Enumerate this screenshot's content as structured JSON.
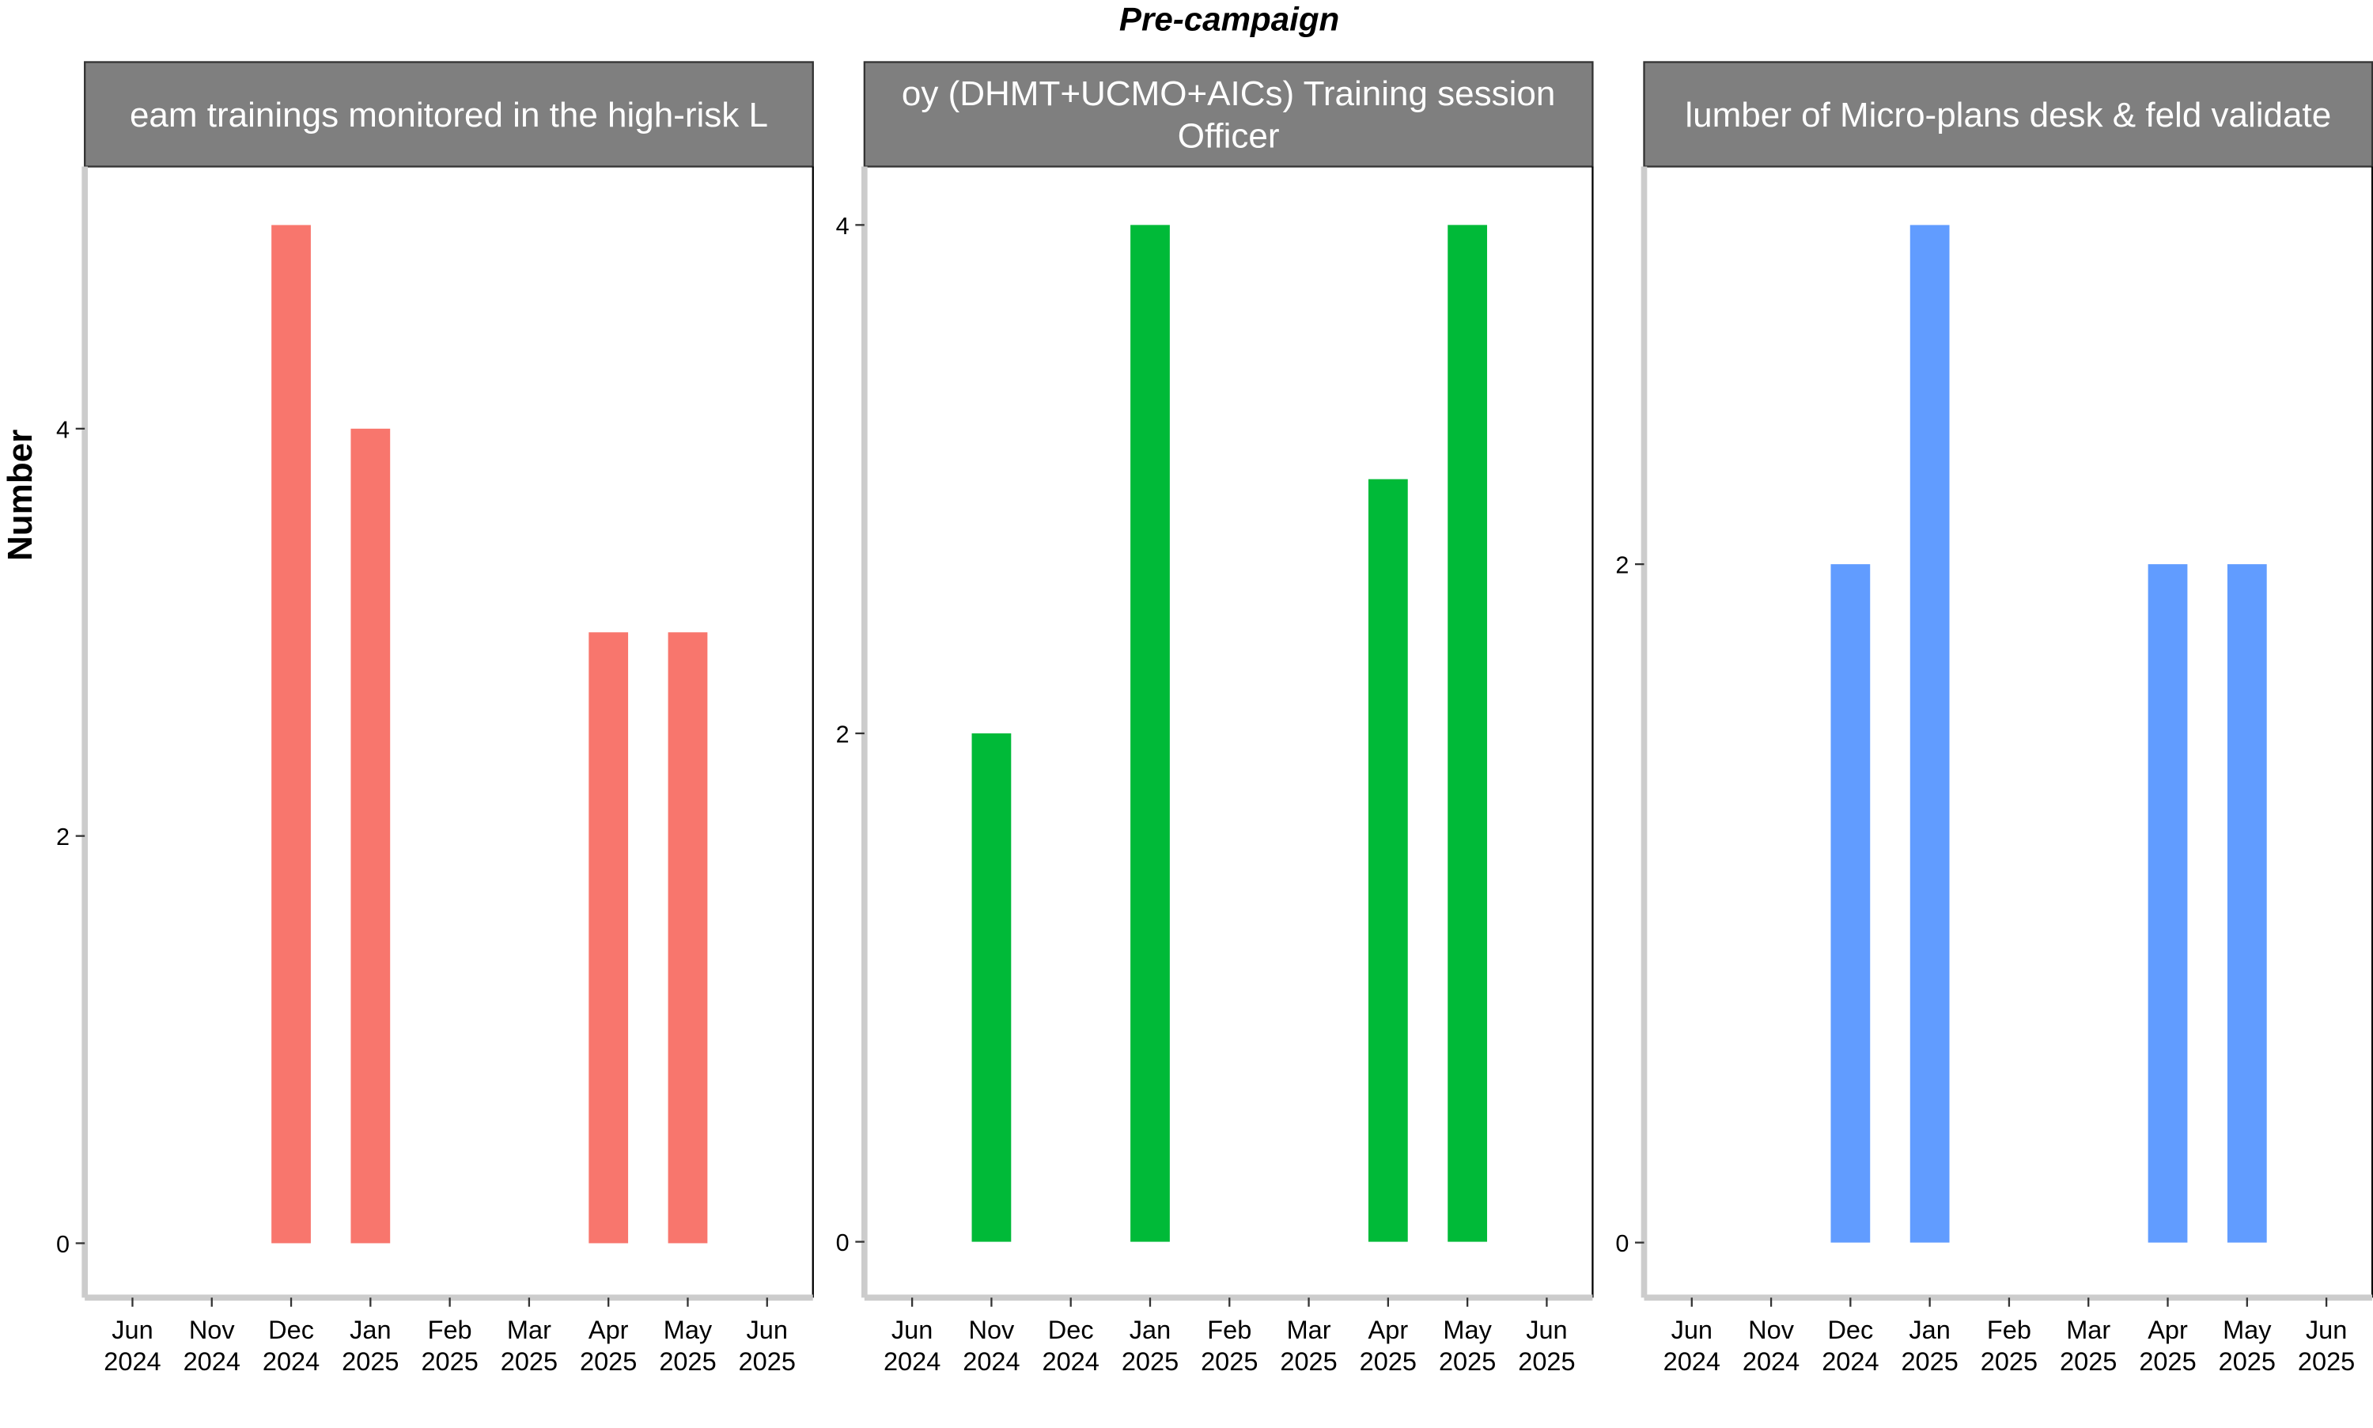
{
  "title": "Pre-campaign",
  "ylabel": "Number",
  "x_ticks": [
    {
      "month": "Jun",
      "year": "2024"
    },
    {
      "month": "Nov",
      "year": "2024"
    },
    {
      "month": "Dec",
      "year": "2024"
    },
    {
      "month": "Jan",
      "year": "2025"
    },
    {
      "month": "Feb",
      "year": "2025"
    },
    {
      "month": "Mar",
      "year": "2025"
    },
    {
      "month": "Apr",
      "year": "2025"
    },
    {
      "month": "May",
      "year": "2025"
    },
    {
      "month": "Jun",
      "year": "2025"
    }
  ],
  "chart_data": [
    {
      "type": "bar",
      "strip_label": [
        "eam trainings monitored in the high-risk L"
      ],
      "color": "#F8766D",
      "categories": [
        "Dec 2024",
        "Jan 2025",
        "Apr 2025",
        "May 2025"
      ],
      "values": [
        5,
        4,
        3,
        3
      ],
      "yticks": [
        0,
        2,
        4
      ],
      "ylim": [
        -0.23,
        5.25
      ]
    },
    {
      "type": "bar",
      "strip_label": [
        "oy (DHMT+UCMO+AICs) Training session",
        "Officer"
      ],
      "color": "#00BA38",
      "categories": [
        "Nov 2024",
        "Jan 2025",
        "Apr 2025",
        "May 2025"
      ],
      "values": [
        2,
        4,
        3,
        4
      ],
      "yticks": [
        0,
        2,
        4
      ],
      "ylim": [
        -0.19,
        4.2
      ]
    },
    {
      "type": "bar",
      "strip_label": [
        "lumber of Micro-plans desk & feld validate"
      ],
      "color": "#619CFF",
      "categories": [
        "Dec 2024",
        "Jan 2025",
        "Apr 2025",
        "May 2025"
      ],
      "values": [
        2,
        3,
        2,
        2
      ],
      "yticks": [
        0,
        2
      ],
      "ylim": [
        -0.14,
        3.15
      ]
    }
  ]
}
